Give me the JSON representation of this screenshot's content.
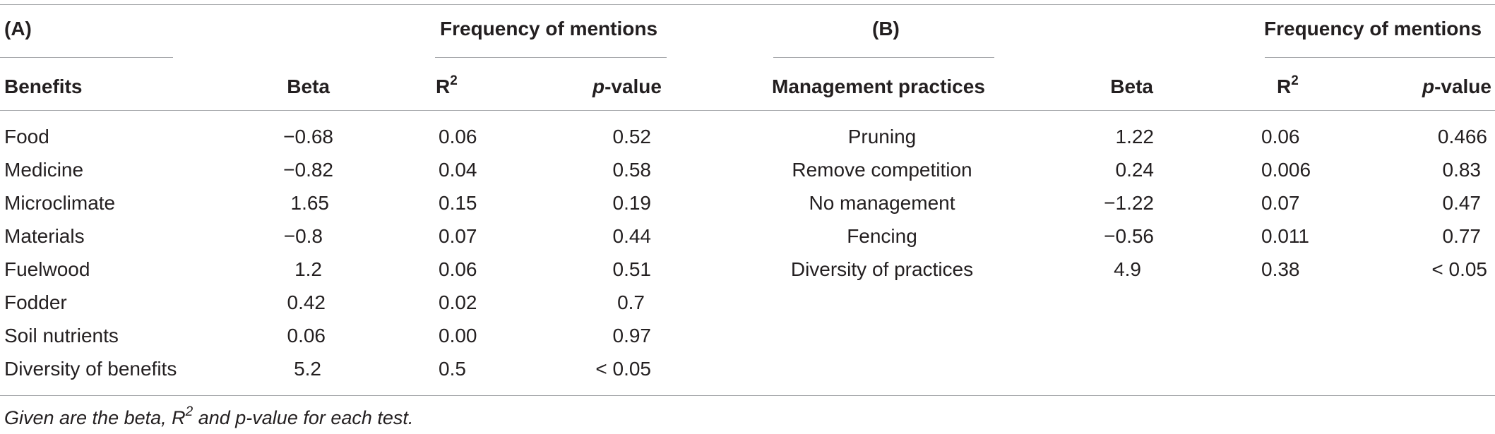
{
  "panel_a": {
    "label": "(A)",
    "group_header": "Frequency of mentions",
    "columns": {
      "benefits": "Benefits",
      "beta": "Beta",
      "r2_base": "R",
      "r2_sup": "2",
      "p_prefix": "p",
      "p_suffix": "-value"
    },
    "rows": [
      {
        "name": "Food",
        "beta": "−0.68",
        "r2": "0.06",
        "p": "0.52"
      },
      {
        "name": "Medicine",
        "beta": "−0.82",
        "r2": "0.04",
        "p": "0.58"
      },
      {
        "name": "Microclimate",
        "beta": "1.65",
        "r2": "0.15",
        "p": "0.19"
      },
      {
        "name": "Materials",
        "beta": "−0.8",
        "r2": "0.07",
        "p": "0.44"
      },
      {
        "name": "Fuelwood",
        "beta": "1.2",
        "r2": "0.06",
        "p": "0.51"
      },
      {
        "name": "Fodder",
        "beta": "0.42",
        "r2": "0.02",
        "p": "0.7"
      },
      {
        "name": "Soil nutrients",
        "beta": "0.06",
        "r2": "0.00",
        "p": "0.97"
      },
      {
        "name": "Diversity of benefits",
        "beta": "5.2",
        "r2": "0.5",
        "p": "< 0.05"
      }
    ]
  },
  "panel_b": {
    "label": "(B)",
    "group_header": "Frequency of mentions",
    "columns": {
      "practices": "Management practices",
      "beta": "Beta",
      "r2_base": "R",
      "r2_sup": "2",
      "p_prefix": "p",
      "p_suffix": "-value"
    },
    "rows": [
      {
        "name": "Pruning",
        "beta": "1.22",
        "r2": "0.06",
        "p": "0.466"
      },
      {
        "name": "Remove competition",
        "beta": "0.24",
        "r2": "0.006",
        "p": "0.83"
      },
      {
        "name": "No management",
        "beta": "−1.22",
        "r2": "0.07",
        "p": "0.47"
      },
      {
        "name": "Fencing",
        "beta": "−0.56",
        "r2": "0.011",
        "p": "0.77"
      },
      {
        "name": "Diversity of practices",
        "beta": "4.9",
        "r2": "0.38",
        "p": "< 0.05"
      }
    ]
  },
  "footnote": {
    "pre": "Given are the beta, R",
    "sup": "2",
    "post": " and p-value for each test."
  }
}
